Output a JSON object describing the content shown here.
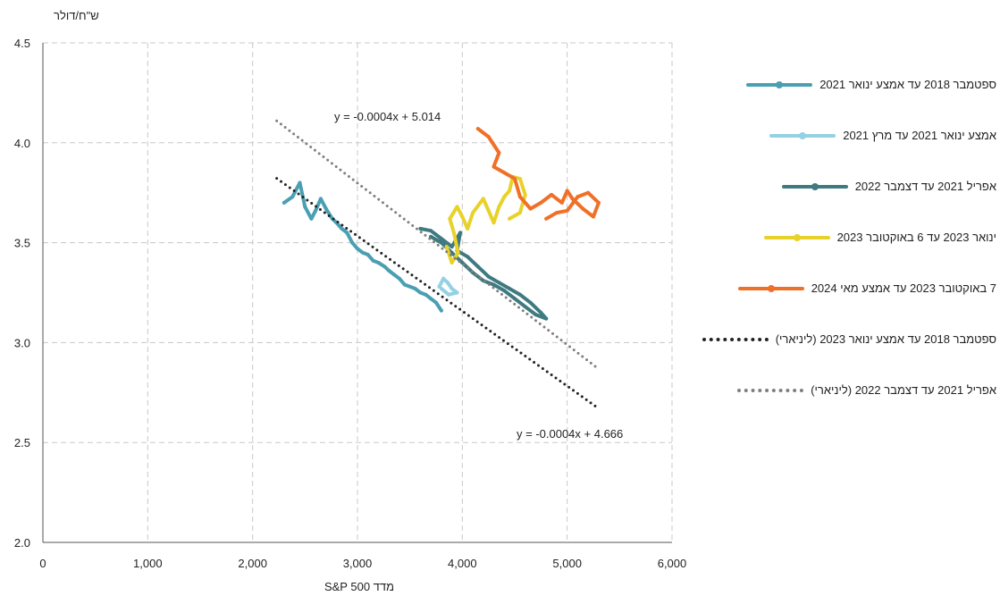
{
  "chart_data": {
    "type": "scatter",
    "ylabel": "ש\"ח/דולר",
    "xlabel": "מדד S&P 500",
    "xlim": [
      0,
      6000
    ],
    "ylim": [
      2.0,
      4.5
    ],
    "x_ticks": [
      "0",
      "1,000",
      "2,000",
      "3,000",
      "4,000",
      "5,000",
      "6,000"
    ],
    "y_ticks": [
      "2.0",
      "2.5",
      "3.0",
      "3.5",
      "4.0",
      "4.5"
    ],
    "grid": true,
    "legend_position": "right",
    "series": [
      {
        "name": "ספטמבר 2018 עד אמצע ינואר 2021",
        "color": "#4a9fb3",
        "points": [
          [
            2300,
            3.7
          ],
          [
            2380,
            3.73
          ],
          [
            2450,
            3.8
          ],
          [
            2500,
            3.68
          ],
          [
            2560,
            3.62
          ],
          [
            2600,
            3.66
          ],
          [
            2650,
            3.72
          ],
          [
            2700,
            3.67
          ],
          [
            2760,
            3.62
          ],
          [
            2800,
            3.6
          ],
          [
            2850,
            3.57
          ],
          [
            2900,
            3.55
          ],
          [
            2950,
            3.5
          ],
          [
            3000,
            3.47
          ],
          [
            3050,
            3.45
          ],
          [
            3100,
            3.44
          ],
          [
            3150,
            3.41
          ],
          [
            3200,
            3.4
          ],
          [
            3260,
            3.38
          ],
          [
            3300,
            3.36
          ],
          [
            3350,
            3.34
          ],
          [
            3400,
            3.32
          ],
          [
            3450,
            3.29
          ],
          [
            3500,
            3.28
          ],
          [
            3550,
            3.27
          ],
          [
            3600,
            3.25
          ],
          [
            3650,
            3.24
          ],
          [
            3700,
            3.22
          ],
          [
            3750,
            3.2
          ],
          [
            3800,
            3.16
          ]
        ]
      },
      {
        "name": "אמצע ינואר 2021 עד מרץ 2021",
        "color": "#93d1e3",
        "points": [
          [
            3780,
            3.28
          ],
          [
            3820,
            3.32
          ],
          [
            3860,
            3.3
          ],
          [
            3900,
            3.27
          ],
          [
            3950,
            3.25
          ],
          [
            3870,
            3.24
          ],
          [
            3800,
            3.27
          ]
        ]
      },
      {
        "name": "אפריל 2021 עד דצמבר 2022",
        "color": "#3e7a80",
        "points": [
          [
            3600,
            3.57
          ],
          [
            3700,
            3.56
          ],
          [
            3800,
            3.52
          ],
          [
            3900,
            3.48
          ],
          [
            3980,
            3.55
          ],
          [
            3950,
            3.46
          ],
          [
            4050,
            3.43
          ],
          [
            4150,
            3.38
          ],
          [
            4250,
            3.33
          ],
          [
            4350,
            3.3
          ],
          [
            4450,
            3.27
          ],
          [
            4550,
            3.24
          ],
          [
            4650,
            3.2
          ],
          [
            4750,
            3.15
          ],
          [
            4800,
            3.12
          ],
          [
            4700,
            3.14
          ],
          [
            4600,
            3.18
          ],
          [
            4500,
            3.22
          ],
          [
            4400,
            3.26
          ],
          [
            4300,
            3.29
          ],
          [
            4200,
            3.31
          ],
          [
            4100,
            3.35
          ],
          [
            4000,
            3.4
          ],
          [
            3900,
            3.45
          ],
          [
            3800,
            3.5
          ],
          [
            3700,
            3.53
          ]
        ]
      },
      {
        "name": "ינואר 2023 עד 6 באוקטובר 2023",
        "color": "#e8d22a",
        "points": [
          [
            3850,
            3.48
          ],
          [
            3900,
            3.4
          ],
          [
            3960,
            3.45
          ],
          [
            3920,
            3.55
          ],
          [
            3880,
            3.62
          ],
          [
            3950,
            3.68
          ],
          [
            4000,
            3.63
          ],
          [
            4050,
            3.57
          ],
          [
            4100,
            3.65
          ],
          [
            4200,
            3.72
          ],
          [
            4250,
            3.66
          ],
          [
            4300,
            3.6
          ],
          [
            4350,
            3.68
          ],
          [
            4400,
            3.73
          ],
          [
            4450,
            3.76
          ],
          [
            4480,
            3.83
          ],
          [
            4550,
            3.82
          ],
          [
            4600,
            3.74
          ],
          [
            4550,
            3.65
          ],
          [
            4450,
            3.62
          ]
        ]
      },
      {
        "name": "7 באוקטובר 2023 עד אמצע מאי 2024",
        "color": "#f07028",
        "points": [
          [
            4150,
            4.07
          ],
          [
            4250,
            4.03
          ],
          [
            4350,
            3.95
          ],
          [
            4300,
            3.88
          ],
          [
            4400,
            3.85
          ],
          [
            4500,
            3.82
          ],
          [
            4550,
            3.73
          ],
          [
            4650,
            3.67
          ],
          [
            4750,
            3.7
          ],
          [
            4850,
            3.74
          ],
          [
            4950,
            3.7
          ],
          [
            5000,
            3.76
          ],
          [
            5050,
            3.72
          ],
          [
            5150,
            3.67
          ],
          [
            5250,
            3.63
          ],
          [
            5300,
            3.7
          ],
          [
            5200,
            3.75
          ],
          [
            5100,
            3.73
          ],
          [
            5000,
            3.66
          ],
          [
            4900,
            3.65
          ],
          [
            4800,
            3.62
          ]
        ]
      }
    ],
    "trendlines": [
      {
        "name": "ספטמבר 2018 עד אמצע ינואר 2023 (ליניארי)",
        "color": "#222222",
        "x": [
          2230,
          5300
        ],
        "y": [
          3.822,
          2.67
        ],
        "equation": "y = -0.0004x + 4.666"
      },
      {
        "name": "אפריל 2021 עד דצמבר 2022 (ליניארי)",
        "color": "#7f7f7f",
        "x": [
          2230,
          5270
        ],
        "y": [
          4.11,
          2.88
        ],
        "equation": "y = -0.0004x + 5.014"
      }
    ]
  }
}
